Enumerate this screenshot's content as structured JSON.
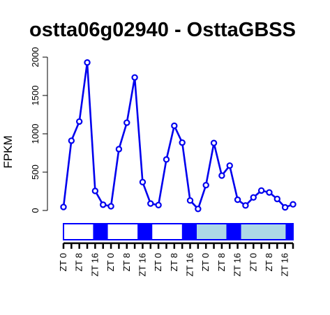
{
  "chart_data": {
    "type": "line",
    "title": "ostta06g02940 - OsttaGBSS",
    "xlabel": "",
    "ylabel": "FPKM",
    "ylim": [
      0,
      2000
    ],
    "yticks": [
      0,
      500,
      1000,
      1500,
      2000
    ],
    "x": [
      0,
      4,
      8,
      12,
      16,
      20,
      24,
      28,
      32,
      36,
      40,
      44,
      48,
      52,
      56,
      60,
      64,
      68,
      72,
      76,
      80,
      84,
      88,
      92,
      96,
      100,
      104,
      108,
      112,
      116
    ],
    "xtick_labels": [
      "ZT 0",
      "ZT 8",
      "ZT 16",
      "ZT 0",
      "ZT 8",
      "ZT 16",
      "ZT 0",
      "ZT 8",
      "ZT 16",
      "ZT 0",
      "ZT 8",
      "ZT 16",
      "ZT 0",
      "ZT 8",
      "ZT 16"
    ],
    "series": [
      {
        "color": "#0000ee",
        "values": [
          45,
          910,
          1160,
          1930,
          255,
          75,
          55,
          800,
          1145,
          1735,
          370,
          90,
          70,
          665,
          1105,
          885,
          130,
          20,
          330,
          880,
          455,
          585,
          140,
          65,
          170,
          260,
          235,
          150,
          40,
          80
        ]
      }
    ],
    "light_bar": {
      "segments": [
        {
          "state": "light",
          "color": "#ffffff"
        },
        {
          "state": "dark",
          "color": "#0000ff"
        },
        {
          "state": "light",
          "color": "#ffffff"
        },
        {
          "state": "dark",
          "color": "#0000ff"
        },
        {
          "state": "light",
          "color": "#ffffff"
        },
        {
          "state": "dark",
          "color": "#0000ff"
        },
        {
          "state": "continuous-light",
          "color": "#add8e6"
        },
        {
          "state": "dark",
          "color": "#0000ff"
        },
        {
          "state": "continuous-light",
          "color": "#add8e6"
        },
        {
          "state": "dark",
          "color": "#0000ff"
        }
      ]
    },
    "grid": false
  }
}
